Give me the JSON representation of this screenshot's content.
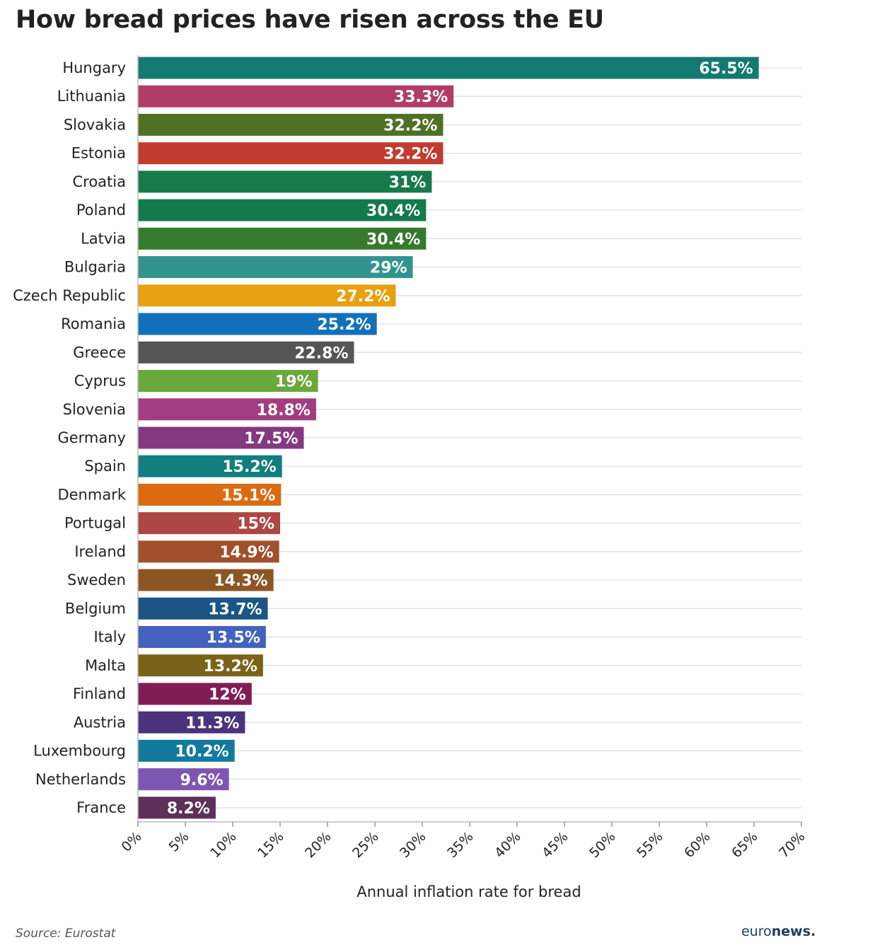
{
  "title": "How bread prices have risen across the EU",
  "source": "Source: Eurostat",
  "brand": {
    "part1": "euro",
    "part2": "news."
  },
  "chart_data": {
    "type": "bar",
    "orientation": "horizontal",
    "title": "How bread prices have risen across the EU",
    "xlabel": "Annual inflation rate for bread",
    "ylabel": "",
    "xlim": [
      0,
      70
    ],
    "x_ticks": [
      0,
      5,
      10,
      15,
      20,
      25,
      30,
      35,
      40,
      45,
      50,
      55,
      60,
      65,
      70
    ],
    "x_tick_labels": [
      "0%",
      "5%",
      "10%",
      "15%",
      "20%",
      "25%",
      "30%",
      "35%",
      "40%",
      "45%",
      "50%",
      "55%",
      "60%",
      "65%",
      "70%"
    ],
    "grid": true,
    "categories": [
      "Hungary",
      "Lithuania",
      "Slovakia",
      "Estonia",
      "Croatia",
      "Poland",
      "Latvia",
      "Bulgaria",
      "Czech Republic",
      "Romania",
      "Greece",
      "Cyprus",
      "Slovenia",
      "Germany",
      "Spain",
      "Denmark",
      "Portugal",
      "Ireland",
      "Sweden",
      "Belgium",
      "Italy",
      "Malta",
      "Finland",
      "Austria",
      "Luxembourg",
      "Netherlands",
      "France"
    ],
    "values": [
      65.5,
      33.3,
      32.2,
      32.2,
      31,
      30.4,
      30.4,
      29,
      27.2,
      25.2,
      22.8,
      19,
      18.8,
      17.5,
      15.2,
      15.1,
      15,
      14.9,
      14.3,
      13.7,
      13.5,
      13.2,
      12,
      11.3,
      10.2,
      9.6,
      8.2
    ],
    "value_labels": [
      "65.5%",
      "33.3%",
      "32.2%",
      "32.2%",
      "31%",
      "30.4%",
      "30.4%",
      "29%",
      "27.2%",
      "25.2%",
      "22.8%",
      "19%",
      "18.8%",
      "17.5%",
      "15.2%",
      "15.1%",
      "15%",
      "14.9%",
      "14.3%",
      "13.7%",
      "13.5%",
      "13.2%",
      "12%",
      "11.3%",
      "10.2%",
      "9.6%",
      "8.2%"
    ],
    "colors": [
      "#127a70",
      "#b03c66",
      "#4f7025",
      "#c23b2f",
      "#187a4a",
      "#137a4e",
      "#357a2d",
      "#31948f",
      "#e8a010",
      "#1270bb",
      "#555555",
      "#69a839",
      "#a23e80",
      "#84387e",
      "#127e7e",
      "#dc6a10",
      "#ad4644",
      "#a0502d",
      "#8c5624",
      "#1c5585",
      "#4262bd",
      "#7a6219",
      "#801d57",
      "#4a327d",
      "#127a9c",
      "#7e55b0",
      "#5c3058"
    ]
  }
}
